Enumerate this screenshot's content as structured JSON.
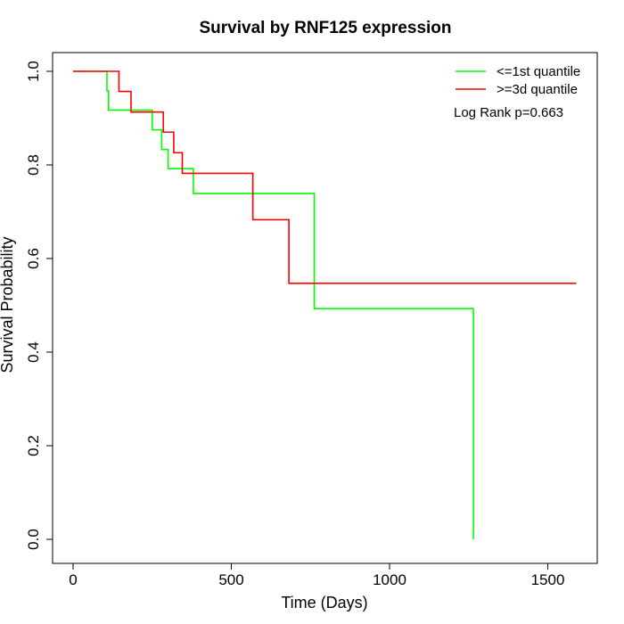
{
  "chart_data": {
    "type": "line",
    "title": "Survival by RNF125 expression",
    "xlabel": "Time (Days)",
    "ylabel": "Survival Probability",
    "xlim": [
      0,
      1650
    ],
    "ylim": [
      0,
      1.0
    ],
    "x_ticks": [
      0,
      500,
      1000,
      1500
    ],
    "y_ticks": [
      0.0,
      0.2,
      0.4,
      0.6,
      0.8,
      1.0
    ],
    "x_tick_labels": [
      "0",
      "500",
      "1000",
      "1500"
    ],
    "y_tick_labels": [
      "0.0",
      "0.2",
      "0.4",
      "0.6",
      "0.8",
      "1.0"
    ],
    "grid": false,
    "legend_position": "top-right",
    "annotation": "Log Rank p=0.663",
    "series": [
      {
        "name": "<=1st quantile",
        "color": "#00ff00",
        "x": [
          0,
          107,
          112,
          250,
          280,
          300,
          380,
          762,
          1265,
          1265
        ],
        "y": [
          1.0,
          0.958,
          0.917,
          0.875,
          0.833,
          0.792,
          0.739,
          0.493,
          0.493,
          0.0
        ]
      },
      {
        "name": ">=3d quantile",
        "color": "#ff0000",
        "x": [
          0,
          145,
          183,
          285,
          318,
          345,
          568,
          682,
          1590
        ],
        "y": [
          1.0,
          0.957,
          0.913,
          0.87,
          0.826,
          0.782,
          0.683,
          0.547,
          0.547
        ]
      }
    ]
  }
}
